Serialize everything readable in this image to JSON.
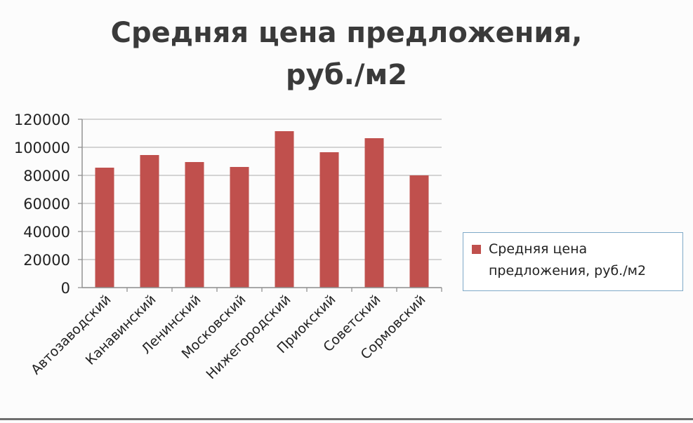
{
  "chart_data": {
    "type": "bar",
    "title": "Средняя цена предложения, руб./м2",
    "title_lines": [
      "Средняя цена предложения,",
      "руб./м2"
    ],
    "categories": [
      "Автозаводский",
      "Канавинский",
      "Ленинский",
      "Московский",
      "Нижегородский",
      "Приокский",
      "Советский",
      "Сормовский"
    ],
    "series": [
      {
        "name": "Средняя цена предложения, руб./м2",
        "values": [
          85500,
          94500,
          89500,
          86000,
          111500,
          96500,
          106500,
          80000
        ],
        "color": "#c0504d"
      }
    ],
    "ylim": [
      0,
      120000
    ],
    "yticks": [
      0,
      20000,
      40000,
      60000,
      80000,
      100000,
      120000
    ],
    "xlabel": "",
    "ylabel": "",
    "grid": true,
    "legend_position": "right"
  }
}
